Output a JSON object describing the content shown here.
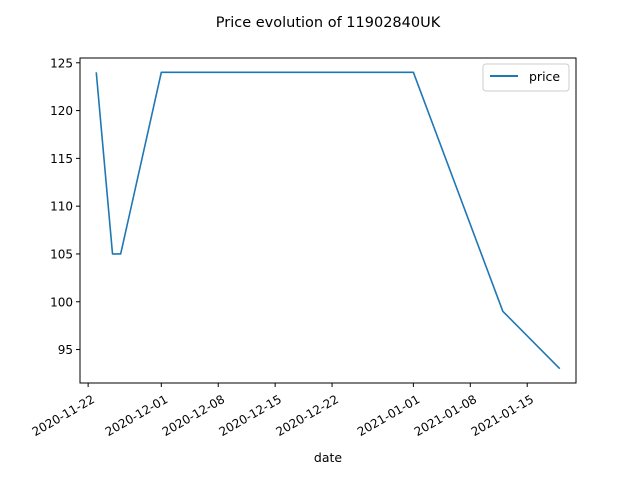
{
  "chart_data": {
    "type": "line",
    "title": "Price evolution of 11902840UK",
    "xlabel": "date",
    "ylabel": "",
    "x_type": "date",
    "xlim": [
      "2020-11-21",
      "2021-01-21"
    ],
    "ylim": [
      91.5,
      125.5
    ],
    "x_ticks": [
      "2020-11-22",
      "2020-12-01",
      "2020-12-08",
      "2020-12-15",
      "2020-12-22",
      "2021-01-01",
      "2021-01-08",
      "2021-01-15"
    ],
    "y_ticks": [
      95,
      100,
      105,
      110,
      115,
      120,
      125
    ],
    "legend": {
      "position": "top-right",
      "entries": [
        "price"
      ]
    },
    "grid": false,
    "series": [
      {
        "name": "price",
        "color": "#1f77b4",
        "points": [
          {
            "x": "2020-11-23",
            "y": 124
          },
          {
            "x": "2020-11-25",
            "y": 105
          },
          {
            "x": "2020-11-26",
            "y": 105
          },
          {
            "x": "2020-12-01",
            "y": 124
          },
          {
            "x": "2021-01-01",
            "y": 124
          },
          {
            "x": "2021-01-12",
            "y": 99
          },
          {
            "x": "2021-01-19",
            "y": 93
          }
        ]
      }
    ]
  }
}
